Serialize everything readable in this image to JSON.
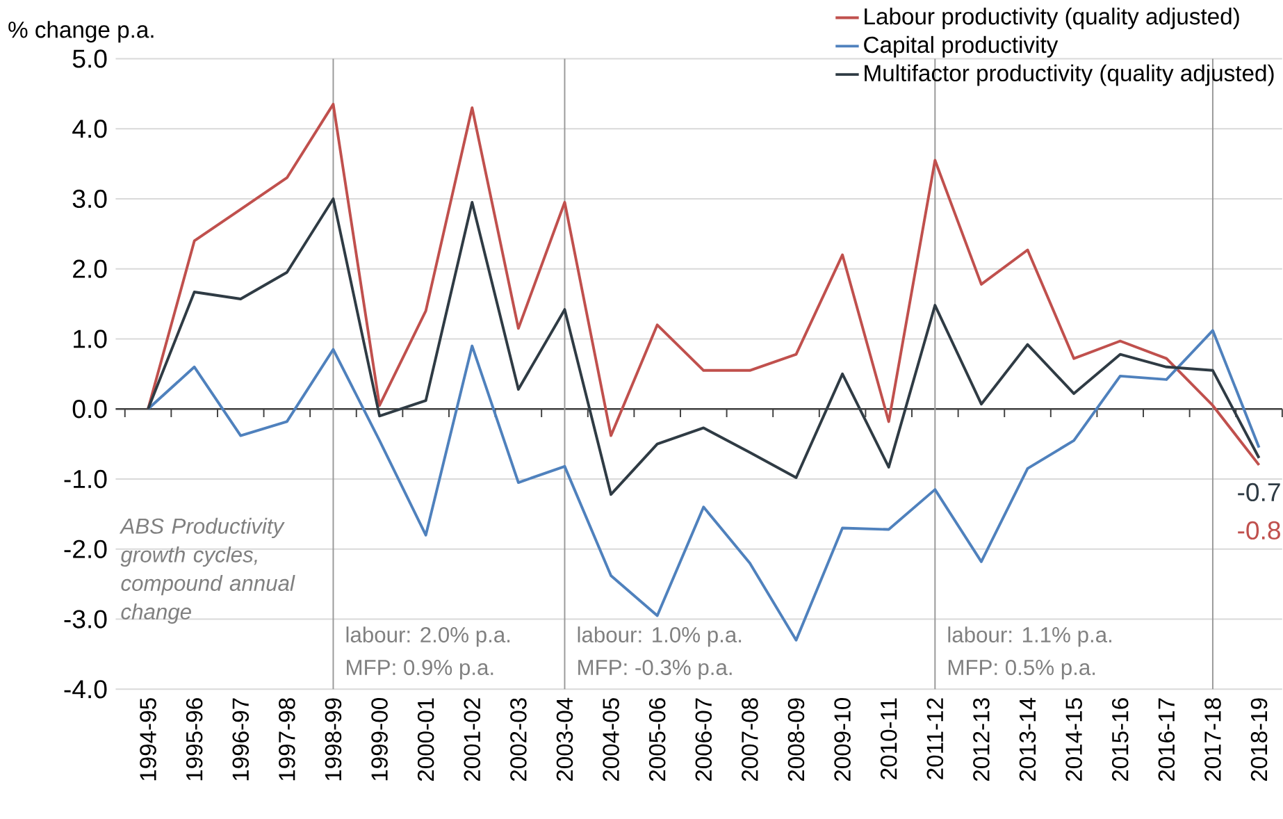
{
  "chart_data": {
    "type": "line",
    "ylabel": "% change p.a.",
    "categories": [
      "1994-95",
      "1995-96",
      "1996-97",
      "1997-98",
      "1998-99",
      "1999-00",
      "2000-01",
      "2001-02",
      "2002-03",
      "2003-04",
      "2004-05",
      "2005-06",
      "2006-07",
      "2007-08",
      "2008-09",
      "2009-10",
      "2010-11",
      "2011-12",
      "2012-13",
      "2013-14",
      "2014-15",
      "2015-16",
      "2016-17",
      "2017-18",
      "2018-19"
    ],
    "series": [
      {
        "name": "Labour productivity (quality adjusted)",
        "color": "#c0504d",
        "values": [
          0,
          2.4,
          2.85,
          3.3,
          4.35,
          0.05,
          1.4,
          4.3,
          1.15,
          2.95,
          -0.38,
          1.2,
          0.55,
          0.55,
          0.78,
          2.2,
          -0.18,
          3.55,
          1.78,
          2.27,
          0.72,
          0.97,
          0.72,
          0.05,
          -0.8
        ],
        "value_labels": [
          null,
          null,
          null,
          null,
          null,
          null,
          null,
          null,
          null,
          null,
          null,
          null,
          null,
          null,
          null,
          null,
          null,
          null,
          null,
          null,
          null,
          null,
          null,
          null,
          "-0.8"
        ]
      },
      {
        "name": "Capital productivity",
        "color": "#4f81bd",
        "values": [
          0,
          0.6,
          -0.38,
          -0.18,
          0.85,
          -0.45,
          -1.8,
          0.9,
          -1.05,
          -0.82,
          -2.38,
          -2.95,
          -1.4,
          -2.2,
          -3.3,
          -1.7,
          -1.72,
          -1.15,
          -2.18,
          -0.85,
          -0.45,
          0.47,
          0.42,
          1.12,
          -0.55
        ]
      },
      {
        "name": "Multifactor productivity (quality adjusted)",
        "color": "#2f3b44",
        "values": [
          0,
          1.67,
          1.57,
          1.95,
          3.0,
          -0.1,
          0.12,
          2.95,
          0.28,
          1.42,
          -1.22,
          -0.5,
          -0.27,
          -0.62,
          -0.98,
          0.5,
          -0.83,
          1.48,
          0.07,
          0.92,
          0.22,
          0.78,
          0.6,
          0.55,
          -0.7
        ],
        "value_labels": [
          null,
          null,
          null,
          null,
          null,
          null,
          null,
          null,
          null,
          null,
          null,
          null,
          null,
          null,
          null,
          null,
          null,
          null,
          null,
          null,
          null,
          null,
          null,
          null,
          "-0.7"
        ]
      }
    ],
    "ylim": [
      -4,
      5
    ],
    "yticks": [
      {
        "value": -4,
        "label": "-4.0"
      },
      {
        "value": -3,
        "label": "-3.0"
      },
      {
        "value": -2,
        "label": "-2.0"
      },
      {
        "value": -1,
        "label": "-1.0"
      },
      {
        "value": 0,
        "label": "0.0"
      },
      {
        "value": 1,
        "label": "1.0"
      },
      {
        "value": 2,
        "label": "2.0"
      },
      {
        "value": 3,
        "label": "3.0"
      },
      {
        "value": 4,
        "label": "4.0"
      },
      {
        "value": 5,
        "label": "5.0"
      }
    ],
    "grid": "y",
    "legend": "top right",
    "marker": "none",
    "line_style": "solid",
    "ref_lines": [
      {
        "axis": "x",
        "value": "1998-99",
        "color": "#999999"
      },
      {
        "axis": "x",
        "value": "2003-04",
        "color": "#999999"
      },
      {
        "axis": "x",
        "value": "2011-12",
        "color": "#999999"
      },
      {
        "axis": "x",
        "value": "2017-18",
        "color": "#999999"
      }
    ],
    "annotations": [
      "ABS Productivity growth cycles, compound annual change",
      "labour: 2.0% p.a.",
      "MFP: 0.9% p.a.",
      "labour: 1.0% p.a.",
      "MFP: -0.3% p.a.",
      "labour: 1.1% p.a.",
      "MFP: 0.5% p.a."
    ]
  }
}
